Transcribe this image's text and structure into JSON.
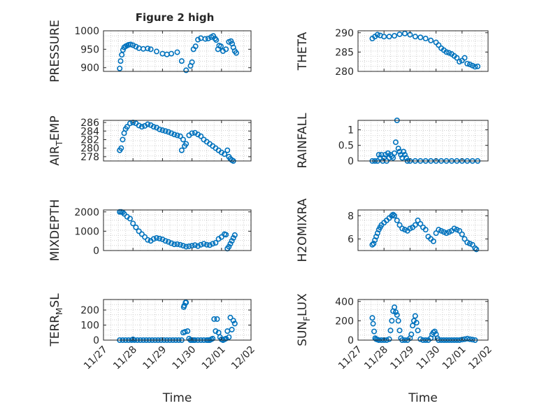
{
  "figure": {
    "title": "Figure 2 high",
    "accent_color": "#0072BD",
    "grid": true,
    "marker": "open-circle"
  },
  "chart_data": [
    {
      "type": "scatter",
      "ylabel": "PRESSURE",
      "xlabel": "",
      "xlim": [
        0,
        5
      ],
      "ylim": [
        890,
        1000
      ],
      "yticks": [
        900,
        950,
        1000
      ],
      "xticks": [],
      "series": [
        {
          "x": [
            0.55,
            0.58,
            0.62,
            0.66,
            0.7,
            0.75,
            0.8,
            0.85,
            0.92,
            1.0,
            1.1,
            1.2,
            1.35,
            1.5,
            1.6,
            1.8,
            2.0,
            2.15,
            2.3,
            2.5,
            2.65,
            2.8,
            2.95,
            3.0,
            3.05,
            3.12,
            3.2,
            3.3,
            3.45,
            3.55,
            3.65,
            3.72,
            3.78,
            3.82,
            3.88,
            3.92,
            3.98,
            4.05,
            4.15,
            4.25,
            4.32,
            4.36,
            4.4,
            4.45,
            4.5
          ],
          "y": [
            898,
            918,
            935,
            948,
            955,
            958,
            960,
            962,
            963,
            961,
            957,
            953,
            951,
            952,
            950,
            944,
            938,
            936,
            938,
            942,
            918,
            893,
            905,
            915,
            950,
            958,
            976,
            980,
            978,
            979,
            983,
            986,
            979,
            975,
            950,
            960,
            958,
            945,
            950,
            970,
            972,
            965,
            955,
            945,
            940
          ]
        }
      ]
    },
    {
      "type": "scatter",
      "ylabel": "THETA",
      "xlabel": "",
      "xlim": [
        0,
        5
      ],
      "ylim": [
        280,
        290.5
      ],
      "yticks": [
        280,
        285,
        290
      ],
      "xticks": [],
      "series": [
        {
          "x": [
            0.55,
            0.65,
            0.75,
            0.85,
            1.0,
            1.2,
            1.4,
            1.6,
            1.8,
            2.0,
            2.2,
            2.4,
            2.6,
            2.8,
            3.0,
            3.1,
            3.2,
            3.3,
            3.4,
            3.5,
            3.6,
            3.7,
            3.8,
            3.9,
            4.0,
            4.1,
            4.2,
            4.3,
            4.4,
            4.5,
            4.6
          ],
          "y": [
            288.5,
            289.0,
            289.5,
            289.3,
            289.0,
            289.0,
            289.2,
            289.6,
            289.8,
            289.5,
            289.0,
            288.8,
            288.5,
            288.0,
            287.5,
            286.8,
            286.0,
            285.5,
            285.0,
            284.8,
            284.5,
            284.0,
            283.5,
            282.5,
            282.8,
            283.5,
            282.0,
            281.8,
            281.5,
            281.2,
            281.3
          ]
        }
      ]
    },
    {
      "type": "scatter",
      "ylabel": "AIR_TEMP",
      "ylabel_base": "AIR",
      "ylabel_sub": "T",
      "ylabel_rest": "EMP",
      "xlabel": "",
      "xlim": [
        0,
        5
      ],
      "ylim": [
        277,
        286.5
      ],
      "yticks": [
        278,
        280,
        282,
        284,
        286
      ],
      "xticks": [],
      "series": [
        {
          "x": [
            0.55,
            0.6,
            0.65,
            0.7,
            0.75,
            0.8,
            0.9,
            1.0,
            1.1,
            1.2,
            1.3,
            1.4,
            1.5,
            1.6,
            1.7,
            1.8,
            1.9,
            2.0,
            2.1,
            2.2,
            2.3,
            2.4,
            2.5,
            2.6,
            2.65,
            2.7,
            2.75,
            2.8,
            2.9,
            3.0,
            3.1,
            3.2,
            3.3,
            3.4,
            3.5,
            3.6,
            3.7,
            3.8,
            3.9,
            4.0,
            4.1,
            4.2,
            4.25,
            4.3,
            4.35,
            4.4
          ],
          "y": [
            279.5,
            280.0,
            282.0,
            283.5,
            284.5,
            285.0,
            285.8,
            286.0,
            285.8,
            285.3,
            285.0,
            285.2,
            285.6,
            285.4,
            285.0,
            284.8,
            284.4,
            284.2,
            284.0,
            283.8,
            283.5,
            283.2,
            283.0,
            282.8,
            279.5,
            282.0,
            280.5,
            281.0,
            283.0,
            283.5,
            283.6,
            283.2,
            282.8,
            282.0,
            281.5,
            281.0,
            280.5,
            280.0,
            279.5,
            279.0,
            278.6,
            279.5,
            278.0,
            277.5,
            277.2,
            277.0
          ]
        }
      ]
    },
    {
      "type": "scatter",
      "ylabel": "RAINFALL",
      "xlabel": "",
      "xlim": [
        0,
        5
      ],
      "ylim": [
        0,
        1.3
      ],
      "yticks": [
        0,
        0.5,
        1
      ],
      "xticks": [],
      "series": [
        {
          "x": [
            0.55,
            0.65,
            0.75,
            0.8,
            0.85,
            0.9,
            0.95,
            1.0,
            1.05,
            1.1,
            1.15,
            1.2,
            1.25,
            1.3,
            1.35,
            1.4,
            1.45,
            1.5,
            1.55,
            1.6,
            1.65,
            1.7,
            1.75,
            1.8,
            1.85,
            1.9,
            2.0,
            2.2,
            2.4,
            2.6,
            2.8,
            3.0,
            3.2,
            3.4,
            3.6,
            3.8,
            4.0,
            4.2,
            4.4,
            4.6
          ],
          "y": [
            0,
            0,
            0,
            0.2,
            0.1,
            0.2,
            0,
            0.1,
            0.2,
            0,
            0.25,
            0.1,
            0.2,
            0.15,
            0.1,
            0.25,
            0.6,
            1.3,
            0.4,
            0.3,
            0.2,
            0.1,
            0.3,
            0.2,
            0.1,
            0,
            0,
            0,
            0,
            0,
            0,
            0,
            0,
            0,
            0,
            0,
            0,
            0,
            0,
            0
          ]
        }
      ]
    },
    {
      "type": "scatter",
      "ylabel": "MIXDEPTH",
      "xlabel": "",
      "xlim": [
        0,
        5
      ],
      "ylim": [
        0,
        2100
      ],
      "yticks": [
        0,
        1000,
        2000
      ],
      "xticks": [],
      "series": [
        {
          "x": [
            0.55,
            0.6,
            0.65,
            0.7,
            0.8,
            0.9,
            1.0,
            1.1,
            1.2,
            1.3,
            1.4,
            1.5,
            1.6,
            1.7,
            1.8,
            1.9,
            2.0,
            2.1,
            2.2,
            2.3,
            2.4,
            2.5,
            2.6,
            2.7,
            2.8,
            2.9,
            3.0,
            3.1,
            3.2,
            3.3,
            3.4,
            3.5,
            3.6,
            3.7,
            3.8,
            3.9,
            4.0,
            4.1,
            4.15,
            4.2,
            4.25,
            4.3,
            4.35,
            4.4,
            4.45
          ],
          "y": [
            2000,
            2000,
            1980,
            1900,
            1750,
            1650,
            1400,
            1200,
            1000,
            850,
            700,
            550,
            500,
            600,
            650,
            620,
            580,
            500,
            450,
            380,
            320,
            330,
            300,
            250,
            200,
            220,
            250,
            280,
            230,
            300,
            350,
            300,
            280,
            350,
            400,
            600,
            700,
            850,
            820,
            100,
            200,
            350,
            500,
            650,
            800
          ]
        }
      ]
    },
    {
      "type": "scatter",
      "ylabel": "H2OMIXRA",
      "xlabel": "",
      "xlim": [
        0,
        5
      ],
      "ylim": [
        5,
        8.5
      ],
      "yticks": [
        6,
        8
      ],
      "xticks": [],
      "series": [
        {
          "x": [
            0.55,
            0.6,
            0.65,
            0.7,
            0.75,
            0.8,
            0.85,
            0.9,
            1.0,
            1.1,
            1.2,
            1.3,
            1.35,
            1.4,
            1.5,
            1.6,
            1.7,
            1.8,
            1.9,
            2.0,
            2.1,
            2.2,
            2.3,
            2.4,
            2.5,
            2.6,
            2.7,
            2.8,
            2.9,
            3.0,
            3.1,
            3.2,
            3.3,
            3.4,
            3.5,
            3.6,
            3.7,
            3.8,
            3.9,
            4.0,
            4.1,
            4.2,
            4.3,
            4.4,
            4.5,
            4.55
          ],
          "y": [
            5.5,
            5.6,
            5.9,
            6.2,
            6.5,
            6.8,
            7.0,
            7.2,
            7.4,
            7.6,
            7.8,
            8.0,
            8.1,
            8.0,
            7.6,
            7.2,
            6.9,
            6.8,
            6.7,
            6.9,
            7.0,
            7.2,
            7.6,
            7.3,
            7.0,
            6.8,
            6.2,
            6.0,
            5.8,
            6.5,
            6.8,
            6.7,
            6.6,
            6.5,
            6.6,
            6.7,
            6.9,
            6.8,
            6.7,
            6.4,
            6.0,
            5.7,
            5.6,
            5.5,
            5.2,
            5.1
          ]
        }
      ]
    },
    {
      "type": "scatter",
      "ylabel": "TERR_MSL",
      "ylabel_base": "TERR",
      "ylabel_sub": "M",
      "ylabel_rest": "SL",
      "xlabel": "Time",
      "xlim": [
        0,
        5
      ],
      "ylim": [
        0,
        270
      ],
      "yticks": [
        0,
        100,
        200
      ],
      "xticks": [
        "11/27",
        "11/28",
        "11/29",
        "11/30",
        "12/01",
        "12/02"
      ],
      "series": [
        {
          "x": [
            0.55,
            0.65,
            0.75,
            0.85,
            0.95,
            1.0,
            1.05,
            1.15,
            1.25,
            1.35,
            1.45,
            1.55,
            1.65,
            1.75,
            1.85,
            1.95,
            2.05,
            2.15,
            2.25,
            2.35,
            2.45,
            2.55,
            2.65,
            2.7,
            2.72,
            2.74,
            2.76,
            2.78,
            2.8,
            2.85,
            2.9,
            2.95,
            3.0,
            3.05,
            3.1,
            3.2,
            3.3,
            3.4,
            3.5,
            3.55,
            3.6,
            3.65,
            3.7,
            3.75,
            3.8,
            3.85,
            3.9,
            3.95,
            4.0,
            4.05,
            4.1,
            4.15,
            4.2,
            4.25,
            4.3,
            4.35,
            4.4,
            4.45
          ],
          "y": [
            0,
            0,
            0,
            0,
            0,
            5,
            0,
            0,
            0,
            0,
            0,
            0,
            0,
            0,
            0,
            0,
            0,
            0,
            0,
            0,
            0,
            0,
            0,
            50,
            220,
            230,
            55,
            250,
            250,
            60,
            10,
            0,
            0,
            0,
            0,
            0,
            0,
            0,
            0,
            0,
            0,
            5,
            10,
            140,
            60,
            140,
            50,
            20,
            5,
            0,
            5,
            10,
            60,
            20,
            150,
            70,
            130,
            110
          ]
        }
      ]
    },
    {
      "type": "scatter",
      "ylabel": "SUN_FLUX",
      "ylabel_base": "SUN",
      "ylabel_sub": "F",
      "ylabel_rest": "LUX",
      "xlabel": "Time",
      "xlim": [
        0,
        5
      ],
      "ylim": [
        0,
        420
      ],
      "yticks": [
        0,
        200,
        400
      ],
      "xticks": [
        "11/27",
        "11/28",
        "11/29",
        "11/30",
        "12/01",
        "12/02"
      ],
      "series": [
        {
          "x": [
            0.55,
            0.58,
            0.62,
            0.66,
            0.7,
            0.75,
            0.8,
            0.9,
            1.0,
            1.1,
            1.2,
            1.25,
            1.3,
            1.35,
            1.4,
            1.45,
            1.5,
            1.55,
            1.6,
            1.65,
            1.7,
            1.8,
            1.9,
            2.0,
            2.05,
            2.1,
            2.15,
            2.2,
            2.25,
            2.3,
            2.4,
            2.5,
            2.6,
            2.7,
            2.8,
            2.85,
            2.9,
            2.95,
            3.0,
            3.05,
            3.1,
            3.2,
            3.3,
            3.4,
            3.5,
            3.6,
            3.7,
            3.8,
            3.9,
            4.0,
            4.1,
            4.2,
            4.3,
            4.4,
            4.5
          ],
          "y": [
            230,
            170,
            90,
            20,
            10,
            5,
            0,
            0,
            0,
            0,
            10,
            100,
            200,
            300,
            340,
            290,
            260,
            200,
            100,
            20,
            0,
            0,
            0,
            20,
            60,
            150,
            200,
            250,
            180,
            100,
            10,
            0,
            0,
            0,
            20,
            60,
            80,
            90,
            60,
            20,
            0,
            0,
            0,
            0,
            0,
            0,
            0,
            0,
            0,
            5,
            10,
            15,
            10,
            5,
            0
          ]
        }
      ]
    }
  ]
}
